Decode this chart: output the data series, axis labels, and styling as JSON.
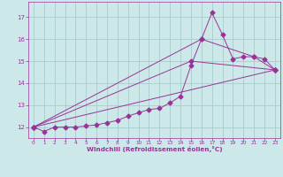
{
  "xlabel": "Windchill (Refroidissement éolien,°C)",
  "background_color": "#cce8e8",
  "grid_color": "#aacccc",
  "line_color": "#993399",
  "xlim": [
    -0.5,
    23.5
  ],
  "ylim": [
    11.5,
    17.7
  ],
  "yticks": [
    12,
    13,
    14,
    15,
    16,
    17
  ],
  "xticks": [
    0,
    1,
    2,
    3,
    4,
    5,
    6,
    7,
    8,
    9,
    10,
    11,
    12,
    13,
    14,
    15,
    16,
    17,
    18,
    19,
    20,
    21,
    22,
    23
  ],
  "series1_x": [
    0,
    1,
    2,
    3,
    4,
    5,
    6,
    7,
    8,
    9,
    10,
    11,
    12,
    13,
    14,
    15,
    16,
    17,
    18,
    19,
    20,
    21,
    22,
    23
  ],
  "series1_y": [
    12.0,
    11.8,
    12.0,
    12.0,
    12.0,
    12.05,
    12.1,
    12.2,
    12.3,
    12.5,
    12.65,
    12.8,
    12.85,
    13.1,
    13.4,
    14.8,
    16.0,
    17.2,
    16.2,
    15.1,
    15.2,
    15.2,
    15.1,
    14.6
  ],
  "series2_x": [
    0,
    23
  ],
  "series2_y": [
    12.0,
    14.6
  ],
  "series3_x": [
    0,
    15,
    23
  ],
  "series3_y": [
    12.0,
    15.0,
    14.6
  ],
  "series4_x": [
    0,
    16,
    21,
    23
  ],
  "series4_y": [
    12.0,
    16.0,
    15.2,
    14.6
  ]
}
